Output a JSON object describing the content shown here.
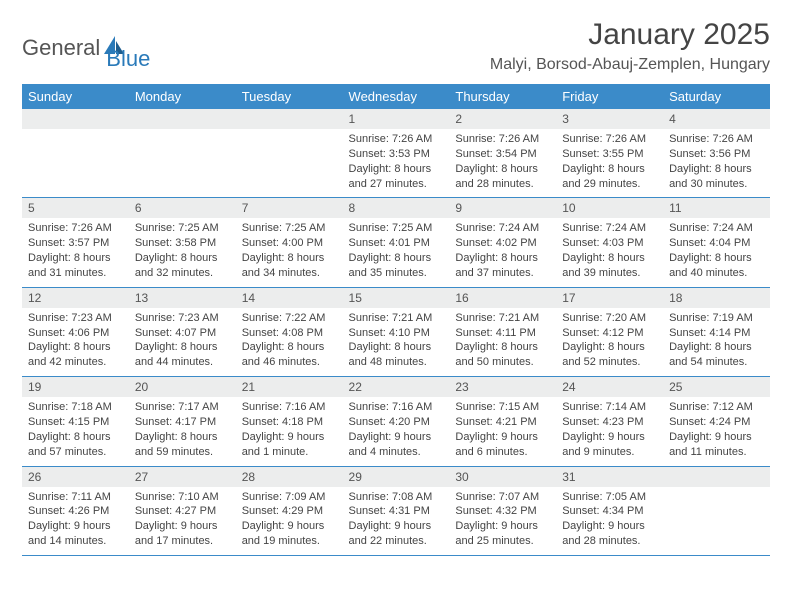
{
  "brand": {
    "name1": "General",
    "name2": "Blue"
  },
  "title": "January 2025",
  "location": "Malyi, Borsod-Abauj-Zemplen, Hungary",
  "weekday_headers": [
    "Sunday",
    "Monday",
    "Tuesday",
    "Wednesday",
    "Thursday",
    "Friday",
    "Saturday"
  ],
  "colors": {
    "header_bg": "#3b8bc9",
    "header_fg": "#ffffff",
    "daynum_bg": "#eceded",
    "rule": "#3b8bc9",
    "logo_blue": "#2a7ab9",
    "text": "#444444"
  },
  "fonts": {
    "title_size_pt": 22,
    "location_size_pt": 12,
    "header_size_pt": 10,
    "cell_size_pt": 8
  },
  "layout": {
    "cols": 7,
    "rows": 5,
    "first_weekday_index": 3,
    "days_in_month": 31
  },
  "days": {
    "1": {
      "sunrise": "7:26 AM",
      "sunset": "3:53 PM",
      "daylight": "8 hours and 27 minutes."
    },
    "2": {
      "sunrise": "7:26 AM",
      "sunset": "3:54 PM",
      "daylight": "8 hours and 28 minutes."
    },
    "3": {
      "sunrise": "7:26 AM",
      "sunset": "3:55 PM",
      "daylight": "8 hours and 29 minutes."
    },
    "4": {
      "sunrise": "7:26 AM",
      "sunset": "3:56 PM",
      "daylight": "8 hours and 30 minutes."
    },
    "5": {
      "sunrise": "7:26 AM",
      "sunset": "3:57 PM",
      "daylight": "8 hours and 31 minutes."
    },
    "6": {
      "sunrise": "7:25 AM",
      "sunset": "3:58 PM",
      "daylight": "8 hours and 32 minutes."
    },
    "7": {
      "sunrise": "7:25 AM",
      "sunset": "4:00 PM",
      "daylight": "8 hours and 34 minutes."
    },
    "8": {
      "sunrise": "7:25 AM",
      "sunset": "4:01 PM",
      "daylight": "8 hours and 35 minutes."
    },
    "9": {
      "sunrise": "7:24 AM",
      "sunset": "4:02 PM",
      "daylight": "8 hours and 37 minutes."
    },
    "10": {
      "sunrise": "7:24 AM",
      "sunset": "4:03 PM",
      "daylight": "8 hours and 39 minutes."
    },
    "11": {
      "sunrise": "7:24 AM",
      "sunset": "4:04 PM",
      "daylight": "8 hours and 40 minutes."
    },
    "12": {
      "sunrise": "7:23 AM",
      "sunset": "4:06 PM",
      "daylight": "8 hours and 42 minutes."
    },
    "13": {
      "sunrise": "7:23 AM",
      "sunset": "4:07 PM",
      "daylight": "8 hours and 44 minutes."
    },
    "14": {
      "sunrise": "7:22 AM",
      "sunset": "4:08 PM",
      "daylight": "8 hours and 46 minutes."
    },
    "15": {
      "sunrise": "7:21 AM",
      "sunset": "4:10 PM",
      "daylight": "8 hours and 48 minutes."
    },
    "16": {
      "sunrise": "7:21 AM",
      "sunset": "4:11 PM",
      "daylight": "8 hours and 50 minutes."
    },
    "17": {
      "sunrise": "7:20 AM",
      "sunset": "4:12 PM",
      "daylight": "8 hours and 52 minutes."
    },
    "18": {
      "sunrise": "7:19 AM",
      "sunset": "4:14 PM",
      "daylight": "8 hours and 54 minutes."
    },
    "19": {
      "sunrise": "7:18 AM",
      "sunset": "4:15 PM",
      "daylight": "8 hours and 57 minutes."
    },
    "20": {
      "sunrise": "7:17 AM",
      "sunset": "4:17 PM",
      "daylight": "8 hours and 59 minutes."
    },
    "21": {
      "sunrise": "7:16 AM",
      "sunset": "4:18 PM",
      "daylight": "9 hours and 1 minute."
    },
    "22": {
      "sunrise": "7:16 AM",
      "sunset": "4:20 PM",
      "daylight": "9 hours and 4 minutes."
    },
    "23": {
      "sunrise": "7:15 AM",
      "sunset": "4:21 PM",
      "daylight": "9 hours and 6 minutes."
    },
    "24": {
      "sunrise": "7:14 AM",
      "sunset": "4:23 PM",
      "daylight": "9 hours and 9 minutes."
    },
    "25": {
      "sunrise": "7:12 AM",
      "sunset": "4:24 PM",
      "daylight": "9 hours and 11 minutes."
    },
    "26": {
      "sunrise": "7:11 AM",
      "sunset": "4:26 PM",
      "daylight": "9 hours and 14 minutes."
    },
    "27": {
      "sunrise": "7:10 AM",
      "sunset": "4:27 PM",
      "daylight": "9 hours and 17 minutes."
    },
    "28": {
      "sunrise": "7:09 AM",
      "sunset": "4:29 PM",
      "daylight": "9 hours and 19 minutes."
    },
    "29": {
      "sunrise": "7:08 AM",
      "sunset": "4:31 PM",
      "daylight": "9 hours and 22 minutes."
    },
    "30": {
      "sunrise": "7:07 AM",
      "sunset": "4:32 PM",
      "daylight": "9 hours and 25 minutes."
    },
    "31": {
      "sunrise": "7:05 AM",
      "sunset": "4:34 PM",
      "daylight": "9 hours and 28 minutes."
    }
  },
  "labels": {
    "sunrise": "Sunrise: ",
    "sunset": "Sunset: ",
    "daylight": "Daylight: "
  }
}
